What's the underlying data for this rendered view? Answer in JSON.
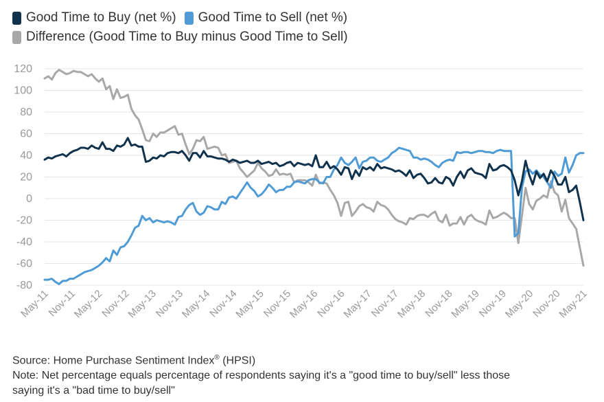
{
  "chart_data": {
    "type": "line",
    "title": "",
    "xlabel": "",
    "ylabel": "",
    "ylim": [
      -80,
      120
    ],
    "yticks": [
      120,
      100,
      80,
      60,
      40,
      20,
      0,
      -20,
      -40,
      -60,
      -80
    ],
    "xticks": [
      "May-11",
      "Nov-11",
      "May-12",
      "Nov-12",
      "May-13",
      "Nov-13",
      "May-14",
      "Nov-14",
      "May-15",
      "Nov-15",
      "May-16",
      "Nov-16",
      "May-17",
      "Nov-17",
      "May-18",
      "Nov-18",
      "May-19",
      "Nov-19",
      "May-20",
      "Nov-20",
      "May-21"
    ],
    "grid": true,
    "legend_position": "top-left",
    "series": [
      {
        "name": "Good Time to Buy (net %)",
        "color": "#10324d",
        "values": [
          36,
          38,
          37,
          39,
          40,
          41,
          39,
          42,
          44,
          45,
          47,
          47,
          46,
          49,
          47,
          46,
          52,
          46,
          46,
          44,
          49,
          48,
          50,
          56,
          49,
          50,
          48,
          48,
          34,
          35,
          38,
          37,
          40,
          39,
          42,
          43,
          43,
          42,
          44,
          40,
          35,
          42,
          42,
          38,
          44,
          39,
          39,
          38,
          37,
          37,
          36,
          34,
          36,
          35,
          33,
          34,
          35,
          33,
          33,
          35,
          32,
          33,
          34,
          32,
          33,
          30,
          31,
          33,
          34,
          30,
          33,
          32,
          31,
          32,
          30,
          40,
          29,
          29,
          34,
          28,
          30,
          27,
          22,
          29,
          28,
          18,
          26,
          21,
          29,
          27,
          29,
          26,
          32,
          28,
          29,
          28,
          27,
          25,
          26,
          24,
          21,
          26,
          19,
          22,
          23,
          19,
          14,
          15,
          19,
          15,
          14,
          20,
          18,
          12,
          20,
          25,
          19,
          26,
          28,
          24,
          23,
          22,
          19,
          32,
          26,
          27,
          30,
          31,
          29,
          26,
          17,
          3,
          16,
          35,
          22,
          13,
          25,
          19,
          23,
          16,
          26,
          21,
          13,
          13,
          20,
          6,
          8,
          12,
          -3,
          -20
        ]
      },
      {
        "name": "Good Time to Sell (net %)",
        "color": "#4f9bd6",
        "values": [
          -75,
          -75,
          -74,
          -77,
          -79,
          -76,
          -76,
          -74,
          -74,
          -72,
          -70,
          -68,
          -67,
          -66,
          -64,
          -62,
          -59,
          -55,
          -58,
          -48,
          -52,
          -45,
          -44,
          -40,
          -34,
          -27,
          -25,
          -16,
          -20,
          -18,
          -22,
          -20,
          -21,
          -22,
          -21,
          -22,
          -24,
          -17,
          -16,
          -10,
          -6,
          -4,
          -12,
          -15,
          -13,
          -7,
          -8,
          -10,
          -10,
          -3,
          -5,
          1,
          2,
          0,
          5,
          10,
          15,
          10,
          7,
          2,
          4,
          8,
          13,
          10,
          6,
          8,
          8,
          11,
          11,
          15,
          16,
          15,
          14,
          17,
          18,
          18,
          15,
          14,
          20,
          20,
          27,
          31,
          38,
          33,
          31,
          34,
          38,
          28,
          34,
          35,
          38,
          38,
          35,
          34,
          36,
          38,
          42,
          44,
          47,
          46,
          45,
          44,
          38,
          38,
          36,
          37,
          36,
          34,
          31,
          29,
          33,
          35,
          36,
          35,
          43,
          42,
          43,
          43,
          42,
          43,
          44,
          44,
          43,
          43,
          42,
          44,
          45,
          44,
          44,
          44,
          -35,
          -32,
          10,
          25,
          27,
          23,
          26,
          22,
          20,
          15,
          10,
          25,
          21,
          23,
          38,
          24,
          31,
          40,
          42,
          42
        ]
      },
      {
        "name": "Difference (Good Time to Buy minus Good Time to Sell)",
        "color": "#a8a8a8",
        "values": [
          111,
          113,
          110,
          116,
          119,
          117,
          115,
          116,
          118,
          117,
          117,
          115,
          113,
          115,
          111,
          108,
          111,
          101,
          104,
          92,
          101,
          93,
          94,
          96,
          83,
          77,
          73,
          64,
          54,
          53,
          60,
          57,
          61,
          61,
          63,
          65,
          67,
          59,
          60,
          50,
          41,
          46,
          54,
          53,
          57,
          46,
          47,
          48,
          47,
          40,
          41,
          33,
          34,
          35,
          28,
          24,
          20,
          23,
          26,
          33,
          28,
          25,
          21,
          22,
          27,
          22,
          23,
          22,
          23,
          15,
          17,
          17,
          17,
          15,
          12,
          22,
          14,
          15,
          14,
          8,
          3,
          -4,
          -16,
          -4,
          -3,
          -16,
          -12,
          -7,
          -5,
          -8,
          -9,
          -12,
          -3,
          -6,
          -7,
          -10,
          -15,
          -19,
          -21,
          -22,
          -24,
          -18,
          -19,
          -16,
          -15,
          -15,
          -17,
          -14,
          -12,
          -20,
          -22,
          -15,
          -25,
          -23,
          -23,
          -17,
          -24,
          -17,
          -15,
          -19,
          -21,
          -22,
          -24,
          -11,
          -18,
          -17,
          -15,
          -13,
          -15,
          -18,
          -18,
          -41,
          -16,
          10,
          -5,
          -10,
          -2,
          0,
          3,
          1,
          16,
          6,
          3,
          -12,
          -1,
          -18,
          -23,
          -28,
          -45,
          -62
        ]
      }
    ]
  },
  "legend": {
    "buy": "Good Time to Buy (net %)",
    "sell": "Good Time to Sell (net %)",
    "diff": "Difference (Good Time to Buy minus Good Time to Sell)"
  },
  "footer": {
    "source_prefix": "Source: Home Purchase Sentiment Index",
    "source_mark": "®",
    "source_suffix": " (HPSI)",
    "note_line1": "Note: Net percentage equals percentage of respondents saying it's a \"good time to buy/sell\" less those",
    "note_line2": "saying it's a \"bad time to buy/sell\""
  }
}
